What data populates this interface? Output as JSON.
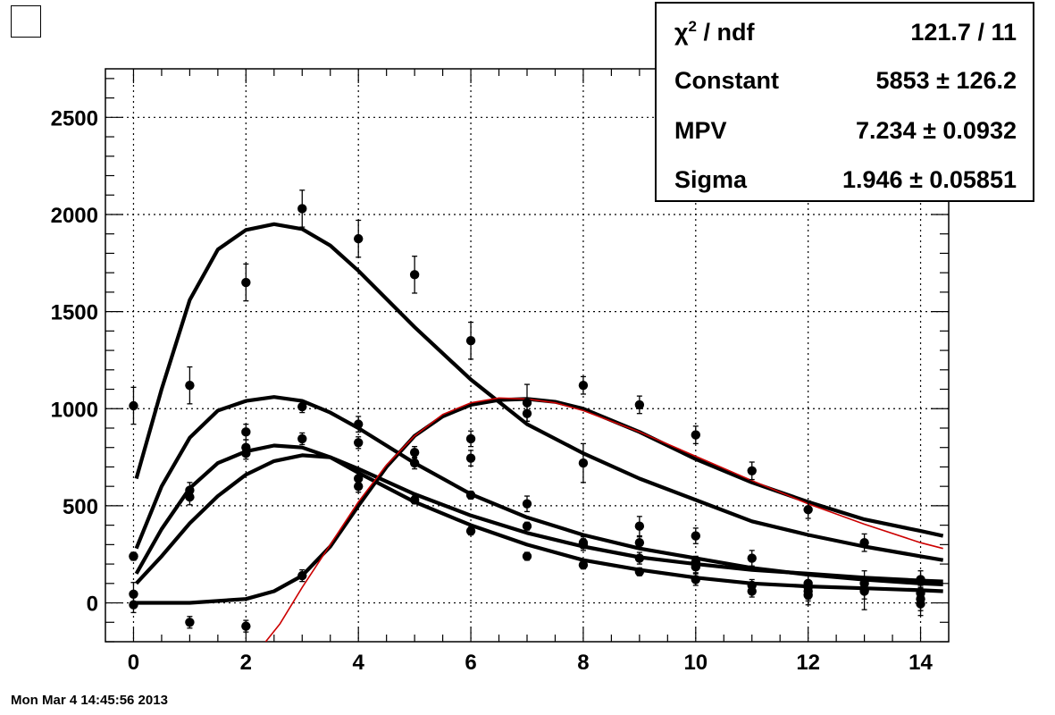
{
  "timestamp": "Mon Mar  4 14:45:56 2013",
  "stats": {
    "chi2_label": "χ",
    "chi2_sup": "2",
    "chi2_suffix": " / ndf",
    "chi2_value": "121.7 / 11",
    "rows": [
      {
        "label": "Constant",
        "value": "5853 ± 126.2"
      },
      {
        "label": "MPV",
        "value": "7.234 ± 0.0932"
      },
      {
        "label": "Sigma",
        "value": "1.946 ± 0.05851"
      }
    ]
  },
  "colors": {
    "axis": "#000000",
    "curve": "#000000",
    "fit": "#cc0000",
    "grid": "#000000"
  },
  "chart_data": {
    "type": "scatter",
    "title": "",
    "xlabel": "",
    "ylabel": "",
    "xlim": [
      -0.5,
      14.5
    ],
    "ylim": [
      -200,
      2750
    ],
    "xticks": [
      0,
      2,
      4,
      6,
      8,
      10,
      12,
      14
    ],
    "yticks": [
      0,
      500,
      1000,
      1500,
      2000,
      2500
    ],
    "xtick_labels": [
      "0",
      "2",
      "4",
      "6",
      "8",
      "10",
      "12",
      "14"
    ],
    "ytick_labels": [
      "0",
      "500",
      "1000",
      "1500",
      "2000",
      "2500"
    ],
    "grid": true,
    "legend": "none",
    "series": [
      {
        "points": [
          {
            "x": 0,
            "y": 1015,
            "err": 95
          },
          {
            "x": 1,
            "y": 1120,
            "err": 95
          },
          {
            "x": 2,
            "y": 1650,
            "err": 95
          },
          {
            "x": 3,
            "y": 2030,
            "err": 95
          },
          {
            "x": 4,
            "y": 1875,
            "err": 95
          },
          {
            "x": 5,
            "y": 1690,
            "err": 95
          },
          {
            "x": 6,
            "y": 1350,
            "err": 95
          },
          {
            "x": 7,
            "y": 1030,
            "err": 95
          },
          {
            "x": 8,
            "y": 1120,
            "err": 45
          },
          {
            "x": 9,
            "y": 1020,
            "err": 45
          },
          {
            "x": 10,
            "y": 865,
            "err": 45
          },
          {
            "x": 11,
            "y": 680,
            "err": 45
          },
          {
            "x": 12,
            "y": 480,
            "err": 45
          },
          {
            "x": 13,
            "y": 310,
            "err": 45
          },
          {
            "x": 14,
            "y": 120,
            "err": 45
          }
        ]
      },
      {
        "points": [
          {
            "x": 0,
            "y": 240,
            "err": 20
          },
          {
            "x": 1,
            "y": 580,
            "err": 40
          },
          {
            "x": 2,
            "y": 800,
            "err": 40
          },
          {
            "x": 3,
            "y": 845,
            "err": 30
          },
          {
            "x": 4,
            "y": 640,
            "err": 40
          },
          {
            "x": 5,
            "y": 530,
            "err": 20
          },
          {
            "x": 6,
            "y": 555,
            "err": 20
          },
          {
            "x": 7,
            "y": 395,
            "err": 20
          },
          {
            "x": 8,
            "y": 300,
            "err": 30
          },
          {
            "x": 9,
            "y": 230,
            "err": 30
          },
          {
            "x": 10,
            "y": 210,
            "err": 30
          },
          {
            "x": 11,
            "y": 90,
            "err": 30
          },
          {
            "x": 12,
            "y": 80,
            "err": 60
          },
          {
            "x": 13,
            "y": 65,
            "err": 100
          },
          {
            "x": 14,
            "y": 20,
            "err": 60
          }
        ]
      },
      {
        "points": [
          {
            "x": 0,
            "y": 45,
            "err": 60
          },
          {
            "x": 1,
            "y": 545,
            "err": 40
          },
          {
            "x": 2,
            "y": 880,
            "err": 40
          },
          {
            "x": 3,
            "y": 1010,
            "err": 30
          },
          {
            "x": 4,
            "y": 920,
            "err": 40
          },
          {
            "x": 5,
            "y": 775,
            "err": 30
          },
          {
            "x": 6,
            "y": 845,
            "err": 40
          },
          {
            "x": 7,
            "y": 510,
            "err": 40
          },
          {
            "x": 8,
            "y": 310,
            "err": 30
          },
          {
            "x": 9,
            "y": 395,
            "err": 50
          },
          {
            "x": 10,
            "y": 345,
            "err": 40
          },
          {
            "x": 11,
            "y": 230,
            "err": 40
          },
          {
            "x": 12,
            "y": 100,
            "err": 50
          },
          {
            "x": 13,
            "y": 100,
            "err": 30
          },
          {
            "x": 14,
            "y": 50,
            "err": 40
          }
        ]
      },
      {
        "points": [
          {
            "x": 0,
            "y": -10,
            "err": 40
          },
          {
            "x": 1,
            "y": -100,
            "err": 30
          },
          {
            "x": 2,
            "y": -120,
            "err": 30
          },
          {
            "x": 3,
            "y": 140,
            "err": 30
          },
          {
            "x": 4,
            "y": 600,
            "err": 30
          },
          {
            "x": 5,
            "y": 720,
            "err": 30
          },
          {
            "x": 6,
            "y": 370,
            "err": 20
          },
          {
            "x": 7,
            "y": 240,
            "err": 20
          },
          {
            "x": 8,
            "y": 195,
            "err": 20
          },
          {
            "x": 9,
            "y": 160,
            "err": 20
          },
          {
            "x": 10,
            "y": 120,
            "err": 30
          },
          {
            "x": 11,
            "y": 60,
            "err": 30
          },
          {
            "x": 12,
            "y": 40,
            "err": 50
          },
          {
            "x": 13,
            "y": 60,
            "err": 40
          },
          {
            "x": 14,
            "y": -5,
            "err": 60
          }
        ]
      },
      {
        "points": [
          {
            "x": 0,
            "y": 240,
            "err": 20
          },
          {
            "x": 2,
            "y": 770,
            "err": 30
          },
          {
            "x": 4,
            "y": 825,
            "err": 30
          },
          {
            "x": 6,
            "y": 745,
            "err": 40
          },
          {
            "x": 7,
            "y": 975,
            "err": 40
          },
          {
            "x": 8,
            "y": 720,
            "err": 100
          },
          {
            "x": 9,
            "y": 310,
            "err": 30
          },
          {
            "x": 10,
            "y": 185,
            "err": 30
          },
          {
            "x": 12,
            "y": 60,
            "err": 50
          }
        ]
      }
    ],
    "curves": [
      {
        "style": "black",
        "x": [
          0.05,
          0.5,
          1,
          1.5,
          2,
          2.5,
          3,
          3.5,
          4,
          5,
          6,
          7,
          8,
          9,
          10,
          11,
          12,
          13,
          14,
          14.4
        ],
        "y": [
          640,
          1100,
          1560,
          1820,
          1920,
          1950,
          1925,
          1840,
          1710,
          1420,
          1150,
          920,
          770,
          640,
          530,
          420,
          350,
          290,
          240,
          220
        ]
      },
      {
        "style": "black",
        "x": [
          0.05,
          0.5,
          1,
          1.5,
          2,
          2.5,
          3,
          3.5,
          4,
          5,
          6,
          7,
          8,
          9,
          10,
          11,
          12,
          13,
          14,
          14.4
        ],
        "y": [
          100,
          240,
          410,
          550,
          660,
          730,
          760,
          750,
          690,
          560,
          450,
          360,
          290,
          235,
          200,
          170,
          150,
          130,
          115,
          110
        ]
      },
      {
        "style": "black",
        "x": [
          0.05,
          0.5,
          1,
          1.5,
          2,
          2.5,
          3,
          3.5,
          4,
          5,
          6,
          7,
          8,
          9,
          10,
          11,
          12,
          13,
          14,
          14.4
        ],
        "y": [
          150,
          380,
          590,
          720,
          780,
          810,
          800,
          750,
          670,
          520,
          400,
          300,
          220,
          170,
          130,
          100,
          85,
          75,
          65,
          60
        ]
      },
      {
        "style": "black",
        "x": [
          0.05,
          0.5,
          1,
          1.5,
          2,
          2.5,
          3,
          3.5,
          4,
          5,
          6,
          7,
          8,
          9,
          10,
          11,
          12,
          13,
          14,
          14.4
        ],
        "y": [
          280,
          600,
          850,
          990,
          1040,
          1060,
          1040,
          980,
          900,
          720,
          560,
          440,
          350,
          280,
          230,
          180,
          145,
          120,
          100,
          95
        ]
      },
      {
        "style": "black",
        "x": [
          0,
          1,
          2,
          2.5,
          3,
          3.5,
          4,
          4.5,
          5,
          5.5,
          6,
          6.5,
          7,
          7.5,
          8,
          9,
          10,
          11,
          12,
          13,
          14,
          14.4
        ],
        "y": [
          0,
          0,
          20,
          60,
          140,
          290,
          500,
          700,
          860,
          960,
          1020,
          1045,
          1050,
          1035,
          1000,
          880,
          740,
          620,
          520,
          430,
          370,
          345
        ]
      },
      {
        "style": "fit",
        "x": [
          2.35,
          2.6,
          3,
          3.5,
          4,
          4.5,
          5,
          5.5,
          6,
          6.5,
          7,
          7.5,
          8,
          9,
          10,
          11,
          12,
          13,
          14,
          14.4
        ],
        "y": [
          -200,
          -110,
          80,
          300,
          520,
          710,
          860,
          970,
          1030,
          1055,
          1050,
          1030,
          990,
          880,
          755,
          630,
          510,
          405,
          310,
          280
        ]
      }
    ]
  }
}
